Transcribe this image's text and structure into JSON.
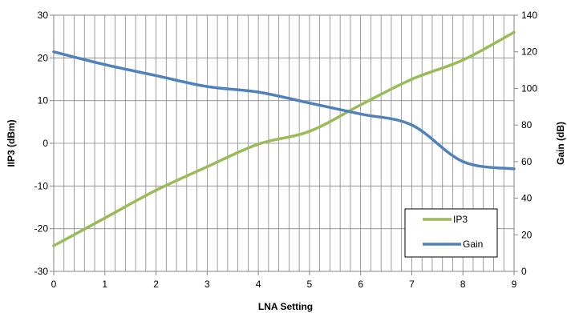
{
  "chart_data": {
    "type": "line",
    "xlabel": "LNA Setting",
    "ylabel_left": "IIP3 (dBm)",
    "ylabel_right": "Gain (dB)",
    "xlim": [
      0,
      9
    ],
    "ylim_left": [
      -30,
      30
    ],
    "ylim_right": [
      0,
      140
    ],
    "x_ticks": [
      "0",
      "1",
      "2",
      "3",
      "4",
      "5",
      "6",
      "7",
      "8",
      "9"
    ],
    "y_ticks_left": [
      "-30",
      "-20",
      "-10",
      "0",
      "10",
      "20",
      "30"
    ],
    "y_ticks_right": [
      "0",
      "20",
      "40",
      "60",
      "80",
      "100",
      "120",
      "140"
    ],
    "grid": true,
    "legend_position": "bottom-right",
    "colors": {
      "IP3": "#9bbb59",
      "Gain": "#4f81bd",
      "grid": "#868686",
      "axis": "#868686"
    },
    "series": [
      {
        "name": "IP3",
        "axis": "left",
        "x": [
          0,
          1,
          2,
          3,
          4,
          5,
          6,
          7,
          8,
          9
        ],
        "values": [
          -24,
          -17.5,
          -11,
          -5.5,
          -0.2,
          2.8,
          9,
          15,
          19.5,
          26
        ]
      },
      {
        "name": "Gain",
        "axis": "right",
        "x": [
          0,
          1,
          2,
          3,
          4,
          5,
          6,
          7,
          8,
          9
        ],
        "values": [
          120,
          113,
          107,
          101,
          98,
          92,
          86,
          80,
          60,
          56
        ]
      }
    ]
  }
}
